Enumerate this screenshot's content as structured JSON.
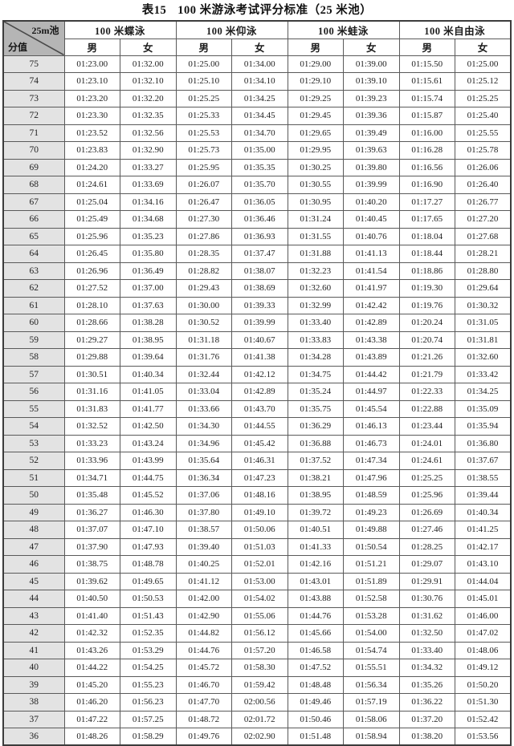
{
  "title": {
    "tag": "表15",
    "text": "100 米游泳考试评分标准（25 米池）"
  },
  "header": {
    "corner_top": "25m池",
    "corner_bottom": "分值",
    "groups": [
      "100 米蝶泳",
      "100 米仰泳",
      "100 米蛙泳",
      "100 米自由泳"
    ],
    "sub": [
      "男",
      "女"
    ]
  },
  "chart_data": {
    "type": "table",
    "title": "表15 100米游泳考试评分标准（25米池）",
    "columns": [
      "分值",
      "100米蝶泳 男",
      "100米蝶泳 女",
      "100米仰泳 男",
      "100米仰泳 女",
      "100米蛙泳 男",
      "100米蛙泳 女",
      "100米自由泳 男",
      "100米自由泳 女"
    ]
  },
  "rows": [
    [
      "75",
      "01:23.00",
      "01:32.00",
      "01:25.00",
      "01:34.00",
      "01:29.00",
      "01:39.00",
      "01:15.50",
      "01:25.00"
    ],
    [
      "74",
      "01:23.10",
      "01:32.10",
      "01:25.10",
      "01:34.10",
      "01:29.10",
      "01:39.10",
      "01:15.61",
      "01:25.12"
    ],
    [
      "73",
      "01:23.20",
      "01:32.20",
      "01:25.25",
      "01:34.25",
      "01:29.25",
      "01:39.23",
      "01:15.74",
      "01:25.25"
    ],
    [
      "72",
      "01:23.30",
      "01:32.35",
      "01:25.33",
      "01:34.45",
      "01:29.45",
      "01:39.36",
      "01:15.87",
      "01:25.40"
    ],
    [
      "71",
      "01:23.52",
      "01:32.56",
      "01:25.53",
      "01:34.70",
      "01:29.65",
      "01:39.49",
      "01:16.00",
      "01:25.55"
    ],
    [
      "70",
      "01:23.83",
      "01:32.90",
      "01:25.73",
      "01:35.00",
      "01:29.95",
      "01:39.63",
      "01:16.28",
      "01:25.78"
    ],
    [
      "69",
      "01:24.20",
      "01:33.27",
      "01:25.95",
      "01:35.35",
      "01:30.25",
      "01:39.80",
      "01:16.56",
      "01:26.06"
    ],
    [
      "68",
      "01:24.61",
      "01:33.69",
      "01:26.07",
      "01:35.70",
      "01:30.55",
      "01:39.99",
      "01:16.90",
      "01:26.40"
    ],
    [
      "67",
      "01:25.04",
      "01:34.16",
      "01:26.47",
      "01:36.05",
      "01:30.95",
      "01:40.20",
      "01:17.27",
      "01:26.77"
    ],
    [
      "66",
      "01:25.49",
      "01:34.68",
      "01:27.30",
      "01:36.46",
      "01:31.24",
      "01:40.45",
      "01:17.65",
      "01:27.20"
    ],
    [
      "65",
      "01:25.96",
      "01:35.23",
      "01:27.86",
      "01:36.93",
      "01:31.55",
      "01:40.76",
      "01:18.04",
      "01:27.68"
    ],
    [
      "64",
      "01:26.45",
      "01:35.80",
      "01:28.35",
      "01:37.47",
      "01:31.88",
      "01:41.13",
      "01:18.44",
      "01:28.21"
    ],
    [
      "63",
      "01:26.96",
      "01:36.49",
      "01:28.82",
      "01:38.07",
      "01:32.23",
      "01:41.54",
      "01:18.86",
      "01:28.80"
    ],
    [
      "62",
      "01:27.52",
      "01:37.00",
      "01:29.43",
      "01:38.69",
      "01:32.60",
      "01:41.97",
      "01:19.30",
      "01:29.64"
    ],
    [
      "61",
      "01:28.10",
      "01:37.63",
      "01:30.00",
      "01:39.33",
      "01:32.99",
      "01:42.42",
      "01:19.76",
      "01:30.32"
    ],
    [
      "60",
      "01:28.66",
      "01:38.28",
      "01:30.52",
      "01:39.99",
      "01:33.40",
      "01:42.89",
      "01:20.24",
      "01:31.05"
    ],
    [
      "59",
      "01:29.27",
      "01:38.95",
      "01:31.18",
      "01:40.67",
      "01:33.83",
      "01:43.38",
      "01:20.74",
      "01:31.81"
    ],
    [
      "58",
      "01:29.88",
      "01:39.64",
      "01:31.76",
      "01:41.38",
      "01:34.28",
      "01:43.89",
      "01:21.26",
      "01:32.60"
    ],
    [
      "57",
      "01:30.51",
      "01:40.34",
      "01:32.44",
      "01:42.12",
      "01:34.75",
      "01:44.42",
      "01:21.79",
      "01:33.42"
    ],
    [
      "56",
      "01:31.16",
      "01:41.05",
      "01:33.04",
      "01:42.89",
      "01:35.24",
      "01:44.97",
      "01:22.33",
      "01:34.25"
    ],
    [
      "55",
      "01:31.83",
      "01:41.77",
      "01:33.66",
      "01:43.70",
      "01:35.75",
      "01:45.54",
      "01:22.88",
      "01:35.09"
    ],
    [
      "54",
      "01:32.52",
      "01:42.50",
      "01:34.30",
      "01:44.55",
      "01:36.29",
      "01:46.13",
      "01:23.44",
      "01:35.94"
    ],
    [
      "53",
      "01:33.23",
      "01:43.24",
      "01:34.96",
      "01:45.42",
      "01:36.88",
      "01:46.73",
      "01:24.01",
      "01:36.80"
    ],
    [
      "52",
      "01:33.96",
      "01:43.99",
      "01:35.64",
      "01:46.31",
      "01:37.52",
      "01:47.34",
      "01:24.61",
      "01:37.67"
    ],
    [
      "51",
      "01:34.71",
      "01:44.75",
      "01:36.34",
      "01:47.23",
      "01:38.21",
      "01:47.96",
      "01:25.25",
      "01:38.55"
    ],
    [
      "50",
      "01:35.48",
      "01:45.52",
      "01:37.06",
      "01:48.16",
      "01:38.95",
      "01:48.59",
      "01:25.96",
      "01:39.44"
    ],
    [
      "49",
      "01:36.27",
      "01:46.30",
      "01:37.80",
      "01:49.10",
      "01:39.72",
      "01:49.23",
      "01:26.69",
      "01:40.34"
    ],
    [
      "48",
      "01:37.07",
      "01:47.10",
      "01:38.57",
      "01:50.06",
      "01:40.51",
      "01:49.88",
      "01:27.46",
      "01:41.25"
    ],
    [
      "47",
      "01:37.90",
      "01:47.93",
      "01:39.40",
      "01:51.03",
      "01:41.33",
      "01:50.54",
      "01:28.25",
      "01:42.17"
    ],
    [
      "46",
      "01:38.75",
      "01:48.78",
      "01:40.25",
      "01:52.01",
      "01:42.16",
      "01:51.21",
      "01:29.07",
      "01:43.10"
    ],
    [
      "45",
      "01:39.62",
      "01:49.65",
      "01:41.12",
      "01:53.00",
      "01:43.01",
      "01:51.89",
      "01:29.91",
      "01:44.04"
    ],
    [
      "44",
      "01:40.50",
      "01:50.53",
      "01:42.00",
      "01:54.02",
      "01:43.88",
      "01:52.58",
      "01:30.76",
      "01:45.01"
    ],
    [
      "43",
      "01:41.40",
      "01:51.43",
      "01:42.90",
      "01:55.06",
      "01:44.76",
      "01:53.28",
      "01:31.62",
      "01:46.00"
    ],
    [
      "42",
      "01:42.32",
      "01:52.35",
      "01:44.82",
      "01:56.12",
      "01:45.66",
      "01:54.00",
      "01:32.50",
      "01:47.02"
    ],
    [
      "41",
      "01:43.26",
      "01:53.29",
      "01:44.76",
      "01:57.20",
      "01:46.58",
      "01:54.74",
      "01:33.40",
      "01:48.06"
    ],
    [
      "40",
      "01:44.22",
      "01:54.25",
      "01:45.72",
      "01:58.30",
      "01:47.52",
      "01:55.51",
      "01:34.32",
      "01:49.12"
    ],
    [
      "39",
      "01:45.20",
      "01:55.23",
      "01:46.70",
      "01:59.42",
      "01:48.48",
      "01:56.34",
      "01:35.26",
      "01:50.20"
    ],
    [
      "38",
      "01:46.20",
      "01:56.23",
      "01:47.70",
      "02:00.56",
      "01:49.46",
      "01:57.19",
      "01:36.22",
      "01:51.30"
    ],
    [
      "37",
      "01:47.22",
      "01:57.25",
      "01:48.72",
      "02:01.72",
      "01:50.46",
      "01:58.06",
      "01:37.20",
      "01:52.42"
    ],
    [
      "36",
      "01:48.26",
      "01:58.29",
      "01:49.76",
      "02:02.90",
      "01:51.48",
      "01:58.94",
      "01:38.20",
      "01:53.56"
    ]
  ]
}
